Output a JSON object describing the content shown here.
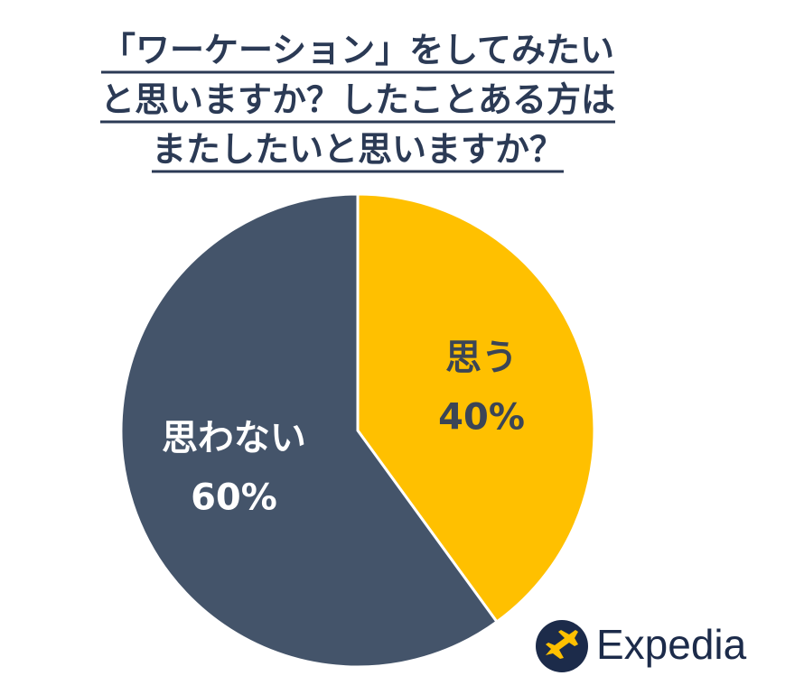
{
  "chart_data": {
    "type": "pie",
    "title": [
      "「ワーケーション」をしてみたい",
      "と思いますか？したことある方は",
      "またしたいと思いますか？"
    ],
    "categories": [
      "思う",
      "思わない"
    ],
    "values": [
      40,
      60
    ],
    "value_labels": [
      "40%",
      "60%"
    ],
    "colors": [
      "#FFC000",
      "#44546A"
    ],
    "label_colors": [
      "#3B4556",
      "#FFFFFF"
    ],
    "brand": "Expedia"
  }
}
